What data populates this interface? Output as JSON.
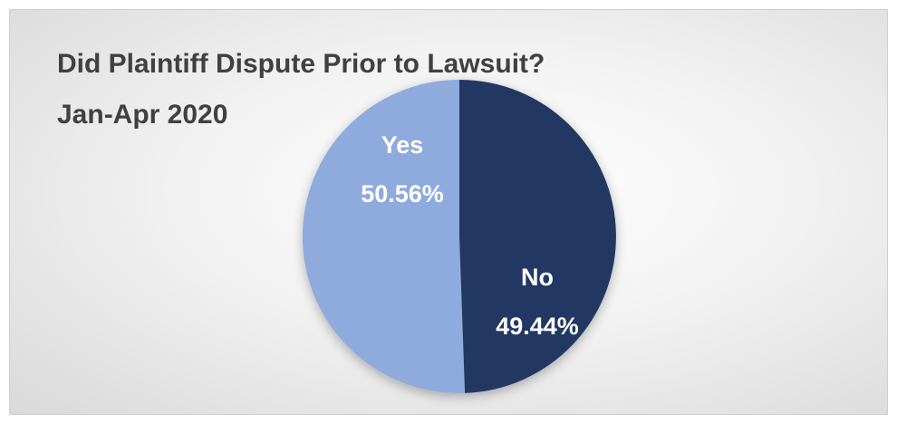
{
  "chart_data": {
    "type": "pie",
    "title": "Did Plaintiff Dispute Prior to Lawsuit?",
    "subtitle": "Jan-Apr 2020",
    "categories": [
      "Yes",
      "No"
    ],
    "values": [
      50.56,
      49.44
    ],
    "data_labels": [
      {
        "category": "Yes",
        "percent": "50.56%"
      },
      {
        "category": "No",
        "percent": "49.44%"
      }
    ],
    "colors": [
      "#8faadc",
      "#203864"
    ],
    "legend": "none"
  }
}
